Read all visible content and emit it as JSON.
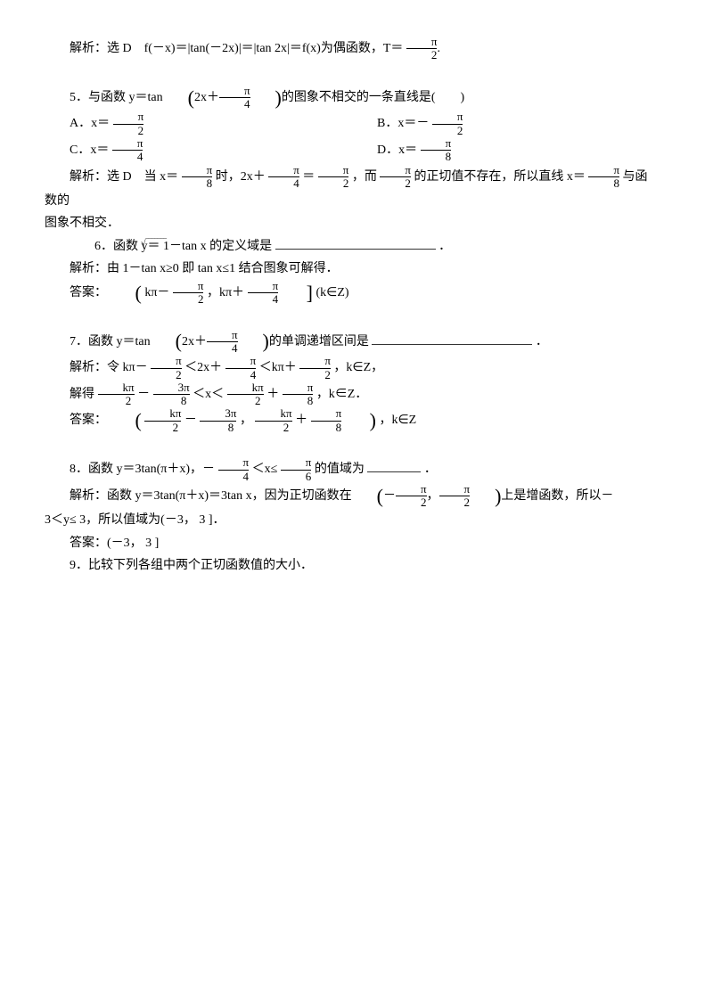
{
  "q4_explain": "解析：选 D　f(－x)＝|tan(－2x)|＝|tan 2x|＝f(x)为偶函数，T＝",
  "q4_frac_top": "π",
  "q4_frac_bot": "2",
  "q4_tail": ".",
  "q5_stem_pre": "5．与函数 y＝tan",
  "q5_stem_inner": "2x＋",
  "q5_stem_frac_top": "π",
  "q5_stem_frac_bot": "4",
  "q5_stem_post": "的图象不相交的一条直线是(　　)",
  "q5_A_pre": "A．x＝",
  "q5_A_top": "π",
  "q5_A_bot": "2",
  "q5_B_pre": "B．x＝－",
  "q5_B_top": "π",
  "q5_B_bot": "2",
  "q5_C_pre": "C．x＝",
  "q5_C_top": "π",
  "q5_C_bot": "4",
  "q5_D_pre": "D．x＝",
  "q5_D_top": "π",
  "q5_D_bot": "8",
  "q5_exp_pre": "解析：选 D　当 x＝",
  "q5_exp_f1t": "π",
  "q5_exp_f1b": "8",
  "q5_exp_mid1": " 时，2x＋",
  "q5_exp_f2t": "π",
  "q5_exp_f2b": "4",
  "q5_exp_mid2": "＝",
  "q5_exp_f3t": "π",
  "q5_exp_f3b": "2",
  "q5_exp_mid3": "，而",
  "q5_exp_f4t": "π",
  "q5_exp_f4b": "2",
  "q5_exp_mid4": "的正切值不存在，所以直线 x＝",
  "q5_exp_f5t": "π",
  "q5_exp_f5b": "8",
  "q5_exp_tail": "与函数的",
  "q5_exp_line2": "图象不相交．",
  "q6_stem": "6．函数 y＝ 1－tan x 的定义域是",
  "q6_tail": "．",
  "q6_exp1": "解析：由 1－tan x≥0 即 tan x≤1 结合图象可解得．",
  "q6_ans_lead": "",
  "q6_ans_kpi_minus": "kπ－",
  "q6_ans_pi2_t": "π",
  "q6_ans_pi2_b": "2",
  "q6_ans_comma": "，kπ＋",
  "q6_ans_pi4_t": "π",
  "q6_ans_pi4_b": "4",
  "q6_ans_tail": "(k∈Z)",
  "q6_ans_prefix": "答案：",
  "q7_stem_pre": "7．函数 y＝tan",
  "q7_stem_inner": "2x＋",
  "q7_stem_ft": "π",
  "q7_stem_fb": "4",
  "q7_stem_post": "的单调递增区间是",
  "q7_tail": "．",
  "q7_exp_pre": "解析：令 kπ－",
  "q7_e_f1t": "π",
  "q7_e_f1b": "2",
  "q7_e_m1": "＜2x＋",
  "q7_e_f2t": "π",
  "q7_e_f2b": "4",
  "q7_e_m2": "＜kπ＋",
  "q7_e_f3t": "π",
  "q7_e_f3b": "2",
  "q7_e_m3": "，k∈Z，",
  "q7_solve_pre": "解得",
  "q7_s_f1t": "kπ",
  "q7_s_f1b": "2",
  "q7_s_m1": "－",
  "q7_s_f2t": "3π",
  "q7_s_f2b": "8",
  "q7_s_m2": "＜x＜",
  "q7_s_f3t": "kπ",
  "q7_s_f3b": "2",
  "q7_s_m3": "＋",
  "q7_s_f4t": "π",
  "q7_s_f4b": "8",
  "q7_s_tail": "，k∈Z．",
  "q7_ans_pre": "答案：",
  "q7_a_f1t": "kπ",
  "q7_a_f1b": "2",
  "q7_a_m1": "－",
  "q7_a_f2t": "3π",
  "q7_a_f2b": "8",
  "q7_a_m2": "，",
  "q7_a_f3t": "kπ",
  "q7_a_f3b": "2",
  "q7_a_m3": "＋",
  "q7_a_f4t": "π",
  "q7_a_f4b": "8",
  "q7_a_tail": "，k∈Z",
  "q8_stem_pre": "8．函数 y＝3tan(π＋x)，－",
  "q8_f1t": "π",
  "q8_f1b": "4",
  "q8_m1": "＜x≤",
  "q8_f2t": "π",
  "q8_f2b": "6",
  "q8_m2": " 的值域为",
  "q8_tail": "．",
  "q8_exp_pre": "解析：函数 y＝3tan(π＋x)＝3tan x，因为正切函数在",
  "q8_int_l": "－",
  "q8_i_f1t": "π",
  "q8_i_f1b": "2",
  "q8_int_c": "，",
  "q8_i_f2t": "π",
  "q8_i_f2b": "2",
  "q8_exp_m": "上是增函数，所以－",
  "q8_exp2": "3＜y≤ 3，所以值域为(－3， 3 ]．",
  "q8_ans": "答案：(－3， 3 ]",
  "q9_stem": "9．比较下列各组中两个正切函数值的大小．"
}
